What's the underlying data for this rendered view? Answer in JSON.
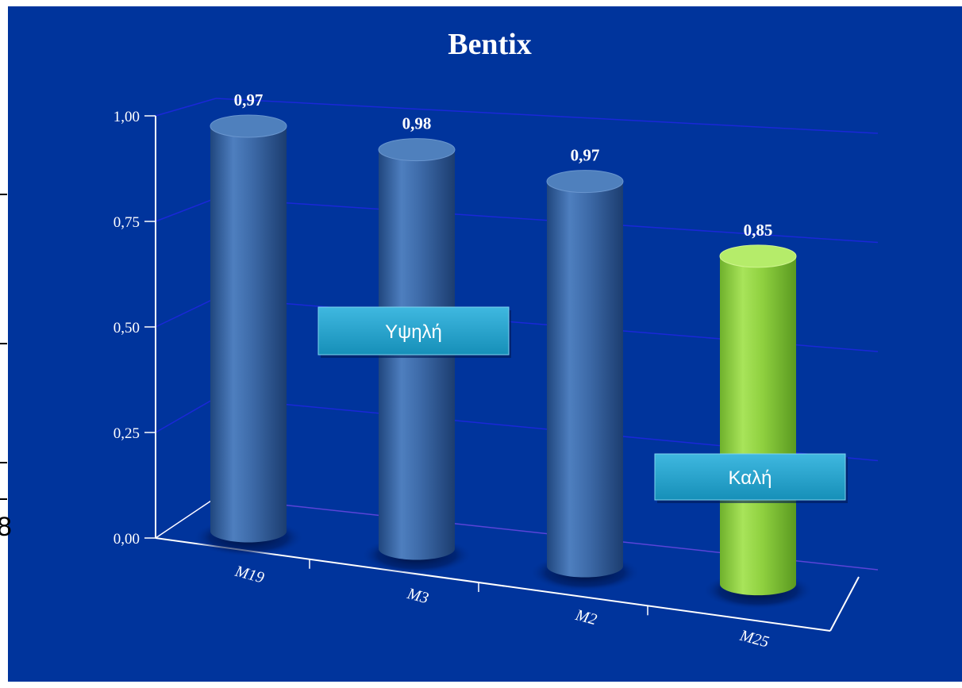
{
  "chart_data": {
    "type": "bar",
    "title": "Bentix",
    "categories": [
      "M19",
      "M3",
      "M2",
      "M25"
    ],
    "values": [
      0.97,
      0.98,
      0.97,
      0.85
    ],
    "value_labels": [
      "0,97",
      "0,98",
      "0,97",
      "0,85"
    ],
    "y_ticks": [
      "0,00",
      "0,25",
      "0,50",
      "0,75",
      "1,00"
    ],
    "ylim": [
      0,
      1
    ],
    "xlabel": "",
    "ylabel": "",
    "grid": true,
    "style": "3d-cylinder",
    "colors": {
      "background": "#00349c",
      "bar_default": "#3a6aa8",
      "bar_highlight": "#8fd63e",
      "gridline": "#1a28d8",
      "axis": "#ffffff"
    },
    "bar_color_keys": [
      "bar_default",
      "bar_default",
      "bar_default",
      "bar_highlight"
    ],
    "annotations": [
      {
        "text": "Υψηλή"
      },
      {
        "text": "Καλή"
      }
    ]
  },
  "page_edge_text": "8"
}
